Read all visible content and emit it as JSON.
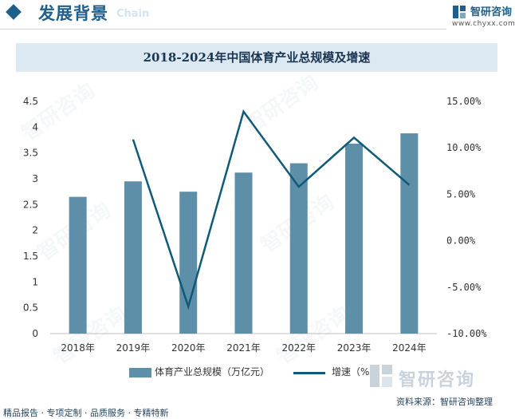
{
  "header": {
    "title": "发展背景",
    "subtitle": "Chain",
    "brand_name": "智研咨询",
    "url": "www.chyxx.com"
  },
  "footer": {
    "left_text": "精品报告 · 专项定制 · 品质服务 · 专精特新",
    "source_text": "资料来源：智研咨询整理",
    "watermark_brand": "智研咨询"
  },
  "watermark_text": "智研咨询",
  "colors": {
    "accent": "#1f5f8b",
    "bar": "#5e8fa8",
    "line": "#0e5a78",
    "title_band": "#dce8f2"
  },
  "chart_data": {
    "type": "bar",
    "title": "2018-2024年中国体育产业总规模及增速",
    "categories": [
      "2018年",
      "2019年",
      "2020年",
      "2021年",
      "2022年",
      "2023年",
      "2024年"
    ],
    "series": [
      {
        "name": "体育产业总规模（万亿元）",
        "type": "bar",
        "axis": "left",
        "values": [
          2.65,
          2.95,
          2.75,
          3.12,
          3.3,
          3.68,
          3.88
        ]
      },
      {
        "name": "增速（%）",
        "type": "line",
        "axis": "right",
        "values": [
          null,
          10.9,
          -7.1,
          13.9,
          5.8,
          11.1,
          6.0
        ]
      }
    ],
    "y_left": {
      "ylim": [
        0,
        4.5
      ],
      "ticks": [
        "0",
        "0.5",
        "1",
        "1.5",
        "2",
        "2.5",
        "3",
        "3.5",
        "4",
        "4.5"
      ]
    },
    "y_right": {
      "ylim": [
        -10,
        15
      ],
      "ticks": [
        "-10.00%",
        "-5.00%",
        "0.00%",
        "5.00%",
        "10.00%",
        "15.00%"
      ]
    },
    "grid": false,
    "legend_position": "bottom"
  }
}
